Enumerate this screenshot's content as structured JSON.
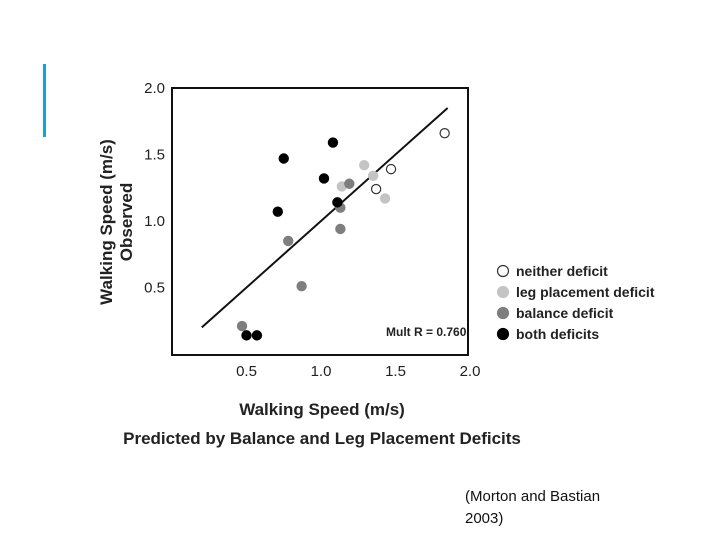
{
  "citation": "(Morton and Bastian\n2003)",
  "accent_color": "#1f9fd6",
  "chart_data": {
    "type": "scatter",
    "xlabel": "Walking Speed (m/s)",
    "xlabel2": "Predicted by Balance and Leg Placement Deficits",
    "ylabel": "Walking Speed (m/s)",
    "ylabel2": "Observed",
    "xlim": [
      0,
      2.0
    ],
    "ylim": [
      0,
      2.0
    ],
    "xticks": [
      "0.5",
      "1.0",
      "1.5",
      "2.0"
    ],
    "yticks": [
      "0.5",
      "1.0",
      "1.5",
      "2.0"
    ],
    "annotation": "Mult R = 0.760",
    "legend_position": "right",
    "regression_line": {
      "x": [
        0.2,
        1.85
      ],
      "y": [
        0.2,
        1.85
      ]
    },
    "series": [
      {
        "name": "neither deficit",
        "color": "#ffffff",
        "points": [
          [
            1.37,
            1.24
          ],
          [
            1.47,
            1.39
          ],
          [
            1.83,
            1.66
          ]
        ]
      },
      {
        "name": "leg placement deficit",
        "color": "#c4c4c4",
        "points": [
          [
            1.14,
            1.26
          ],
          [
            1.29,
            1.42
          ],
          [
            1.35,
            1.34
          ],
          [
            1.43,
            1.17
          ]
        ]
      },
      {
        "name": "balance deficit",
        "color": "#7e7e7e",
        "points": [
          [
            0.47,
            0.21
          ],
          [
            0.78,
            0.85
          ],
          [
            0.87,
            0.51
          ],
          [
            1.13,
            1.1
          ],
          [
            1.13,
            0.94
          ],
          [
            1.19,
            1.28
          ]
        ]
      },
      {
        "name": "both deficits",
        "color": "#000000",
        "points": [
          [
            0.5,
            0.14
          ],
          [
            0.57,
            0.14
          ],
          [
            0.71,
            1.07
          ],
          [
            0.75,
            1.47
          ],
          [
            1.02,
            1.32
          ],
          [
            1.08,
            1.59
          ],
          [
            1.11,
            1.14
          ]
        ]
      }
    ]
  }
}
